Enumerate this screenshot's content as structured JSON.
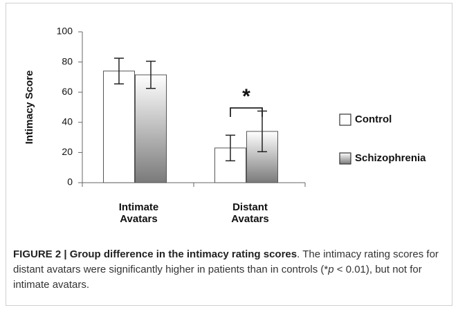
{
  "chart_data": {
    "type": "bar",
    "categories": [
      "Intimate Avatars",
      "Distant Avatars"
    ],
    "ylabel": "Intimacy Score",
    "ylim": [
      0,
      100
    ],
    "yticks": [
      0,
      20,
      40,
      60,
      80,
      100
    ],
    "series": [
      {
        "name": "Control",
        "color": "#ffffff",
        "values": [
          74,
          23
        ],
        "errors": [
          8.5,
          8.5
        ]
      },
      {
        "name": "Schizophrenia",
        "color": "#7a7a7a",
        "values": [
          71.5,
          34
        ],
        "errors": [
          9,
          13.5
        ]
      }
    ],
    "annotation": "*",
    "legend": "right"
  },
  "caption": {
    "label": "FIGURE 2 | Group difference in the intimacy rating scores",
    "text_before": ". The intimacy rating scores for distant avatars were significantly higher in patients than in controls (*",
    "italic": "p",
    "text_after": " < 0.01), but not for intimate avatars."
  }
}
